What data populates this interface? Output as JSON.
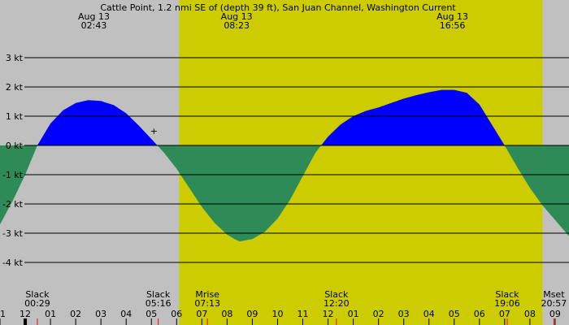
{
  "chart_data": {
    "type": "area",
    "title": "Cattle Point, 1.2 nmi SE of (depth 39 ft), San Juan Channel, Washington Current",
    "y_unit": "kt",
    "ylim": [
      -4.7,
      4.4
    ],
    "y_ticks": [
      {
        "value": 3,
        "label": "3 kt"
      },
      {
        "value": 2,
        "label": "2 kt"
      },
      {
        "value": 1,
        "label": "1 kt"
      },
      {
        "value": 0,
        "label": "0 kt"
      },
      {
        "value": -1,
        "label": "-1 kt"
      },
      {
        "value": -2,
        "label": "-2 kt"
      },
      {
        "value": -3,
        "label": "-3 kt"
      },
      {
        "value": -4,
        "label": "-4 kt"
      }
    ],
    "x_unit": "hours",
    "xlim": [
      11.0,
      33.55
    ],
    "x_ticks": [
      {
        "hour": 11,
        "label": "11"
      },
      {
        "hour": 12,
        "label": "12"
      },
      {
        "hour": 13,
        "label": "01"
      },
      {
        "hour": 14,
        "label": "02"
      },
      {
        "hour": 15,
        "label": "03"
      },
      {
        "hour": 16,
        "label": "04"
      },
      {
        "hour": 17,
        "label": "05"
      },
      {
        "hour": 18,
        "label": "06"
      },
      {
        "hour": 19,
        "label": "07"
      },
      {
        "hour": 20,
        "label": "08"
      },
      {
        "hour": 21,
        "label": "09"
      },
      {
        "hour": 22,
        "label": "10"
      },
      {
        "hour": 23,
        "label": "11"
      },
      {
        "hour": 24,
        "label": "12"
      },
      {
        "hour": 25,
        "label": "01"
      },
      {
        "hour": 26,
        "label": "02"
      },
      {
        "hour": 27,
        "label": "03"
      },
      {
        "hour": 28,
        "label": "04"
      },
      {
        "hour": 29,
        "label": "05"
      },
      {
        "hour": 30,
        "label": "06"
      },
      {
        "hour": 31,
        "label": "07"
      },
      {
        "hour": 32,
        "label": "08"
      },
      {
        "hour": 33,
        "label": "09"
      }
    ],
    "daylight": {
      "start_hour": 18.1,
      "end_hour": 32.5
    },
    "series": [
      {
        "flood_color": "#0000ff",
        "ebb_color": "#2e8b57",
        "x": [
          11.0,
          11.5,
          12.0,
          12.48,
          13.0,
          13.5,
          14.0,
          14.5,
          15.0,
          15.5,
          16.0,
          16.5,
          17.0,
          17.5,
          18.0,
          18.5,
          19.0,
          19.5,
          20.0,
          20.33,
          20.5,
          21.0,
          21.5,
          22.0,
          22.5,
          23.0,
          23.5,
          24.0,
          24.5,
          25.0,
          25.5,
          26.0,
          26.5,
          27.0,
          27.5,
          28.0,
          28.5,
          29.0,
          29.5,
          30.0,
          30.5,
          31.0,
          31.5,
          32.0,
          32.5,
          33.0,
          33.55
        ],
        "y": [
          -2.7,
          -1.9,
          -1.0,
          0.0,
          0.75,
          1.2,
          1.45,
          1.55,
          1.52,
          1.38,
          1.1,
          0.68,
          0.22,
          -0.25,
          -0.8,
          -1.45,
          -2.1,
          -2.65,
          -3.05,
          -3.22,
          -3.28,
          -3.2,
          -2.95,
          -2.5,
          -1.85,
          -1.05,
          -0.25,
          0.3,
          0.72,
          1.0,
          1.18,
          1.3,
          1.45,
          1.6,
          1.72,
          1.82,
          1.9,
          1.9,
          1.8,
          1.4,
          0.7,
          0.0,
          -0.75,
          -1.45,
          -2.05,
          -2.55,
          -3.1
        ]
      }
    ],
    "top_annotations": [
      {
        "hour": 14.72,
        "date": "Aug 13",
        "time": "02:43"
      },
      {
        "hour": 20.38,
        "date": "Aug 13",
        "time": "08:23"
      },
      {
        "hour": 28.93,
        "date": "Aug 13",
        "time": "16:56"
      }
    ],
    "bottom_events": [
      {
        "hour": 12.48,
        "event": "Slack",
        "time": "00:29"
      },
      {
        "hour": 17.27,
        "event": "Slack",
        "time": "05:16"
      },
      {
        "hour": 19.22,
        "event": "Mrise",
        "time": "07:13"
      },
      {
        "hour": 24.33,
        "event": "Slack",
        "time": "12:20"
      },
      {
        "hour": 31.1,
        "event": "Slack",
        "time": "19:06"
      },
      {
        "hour": 32.95,
        "event": "Mset",
        "time": "20:57"
      }
    ],
    "current_time_hour": 12.0,
    "marker": {
      "hour": 17.1,
      "value": 0.5,
      "symbol": "+"
    }
  }
}
